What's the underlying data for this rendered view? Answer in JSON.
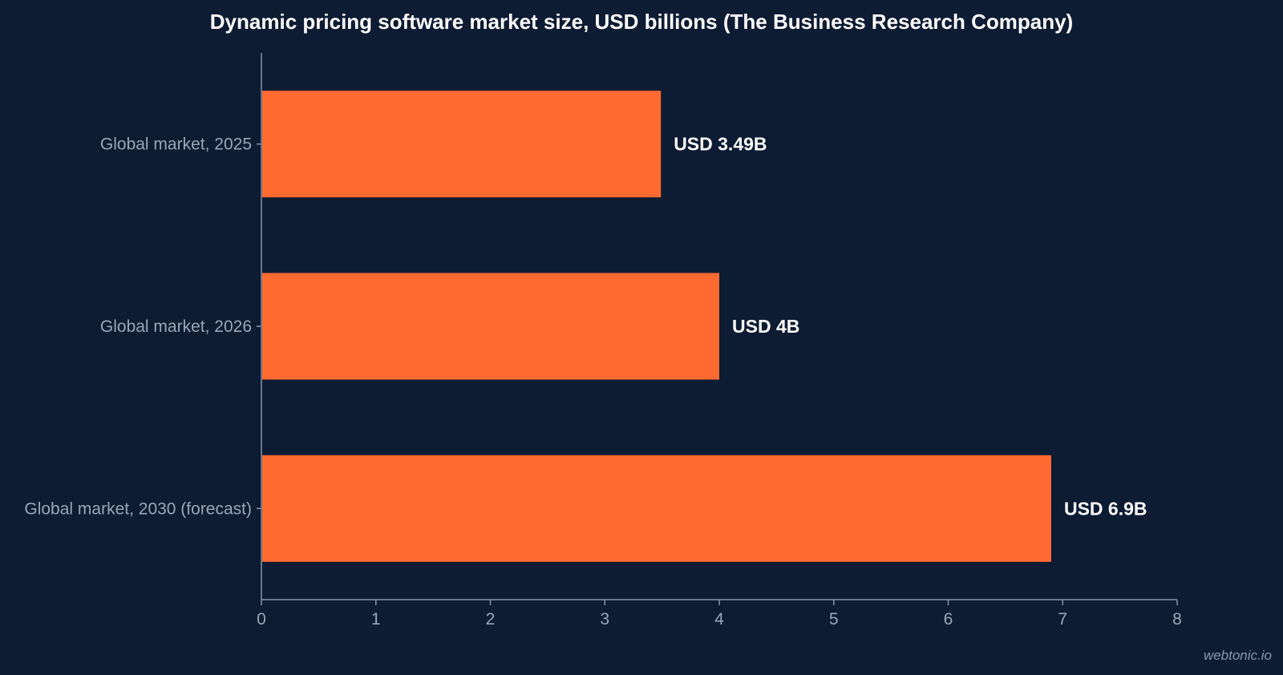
{
  "chart_data": {
    "type": "bar",
    "orientation": "horizontal",
    "title": "Dynamic pricing software market size, USD billions (The Business Research Company)",
    "categories": [
      "Global market, 2025",
      "Global market, 2026",
      "Global market, 2030 (forecast)"
    ],
    "values": [
      3.49,
      4,
      6.9
    ],
    "data_labels": [
      "USD 3.49B",
      "USD 4B",
      "USD 6.9B"
    ],
    "xlim": [
      0,
      8
    ],
    "xticks": [
      0,
      1,
      2,
      3,
      4,
      5,
      6,
      7,
      8
    ],
    "grid": false,
    "bar_color": "#ff6a30",
    "background_color": "#0d1b33",
    "axis_color": "#8a96a8",
    "label_color": "#9aa7b8",
    "value_label_color": "#ffffff"
  },
  "watermark": "webtonic.io"
}
